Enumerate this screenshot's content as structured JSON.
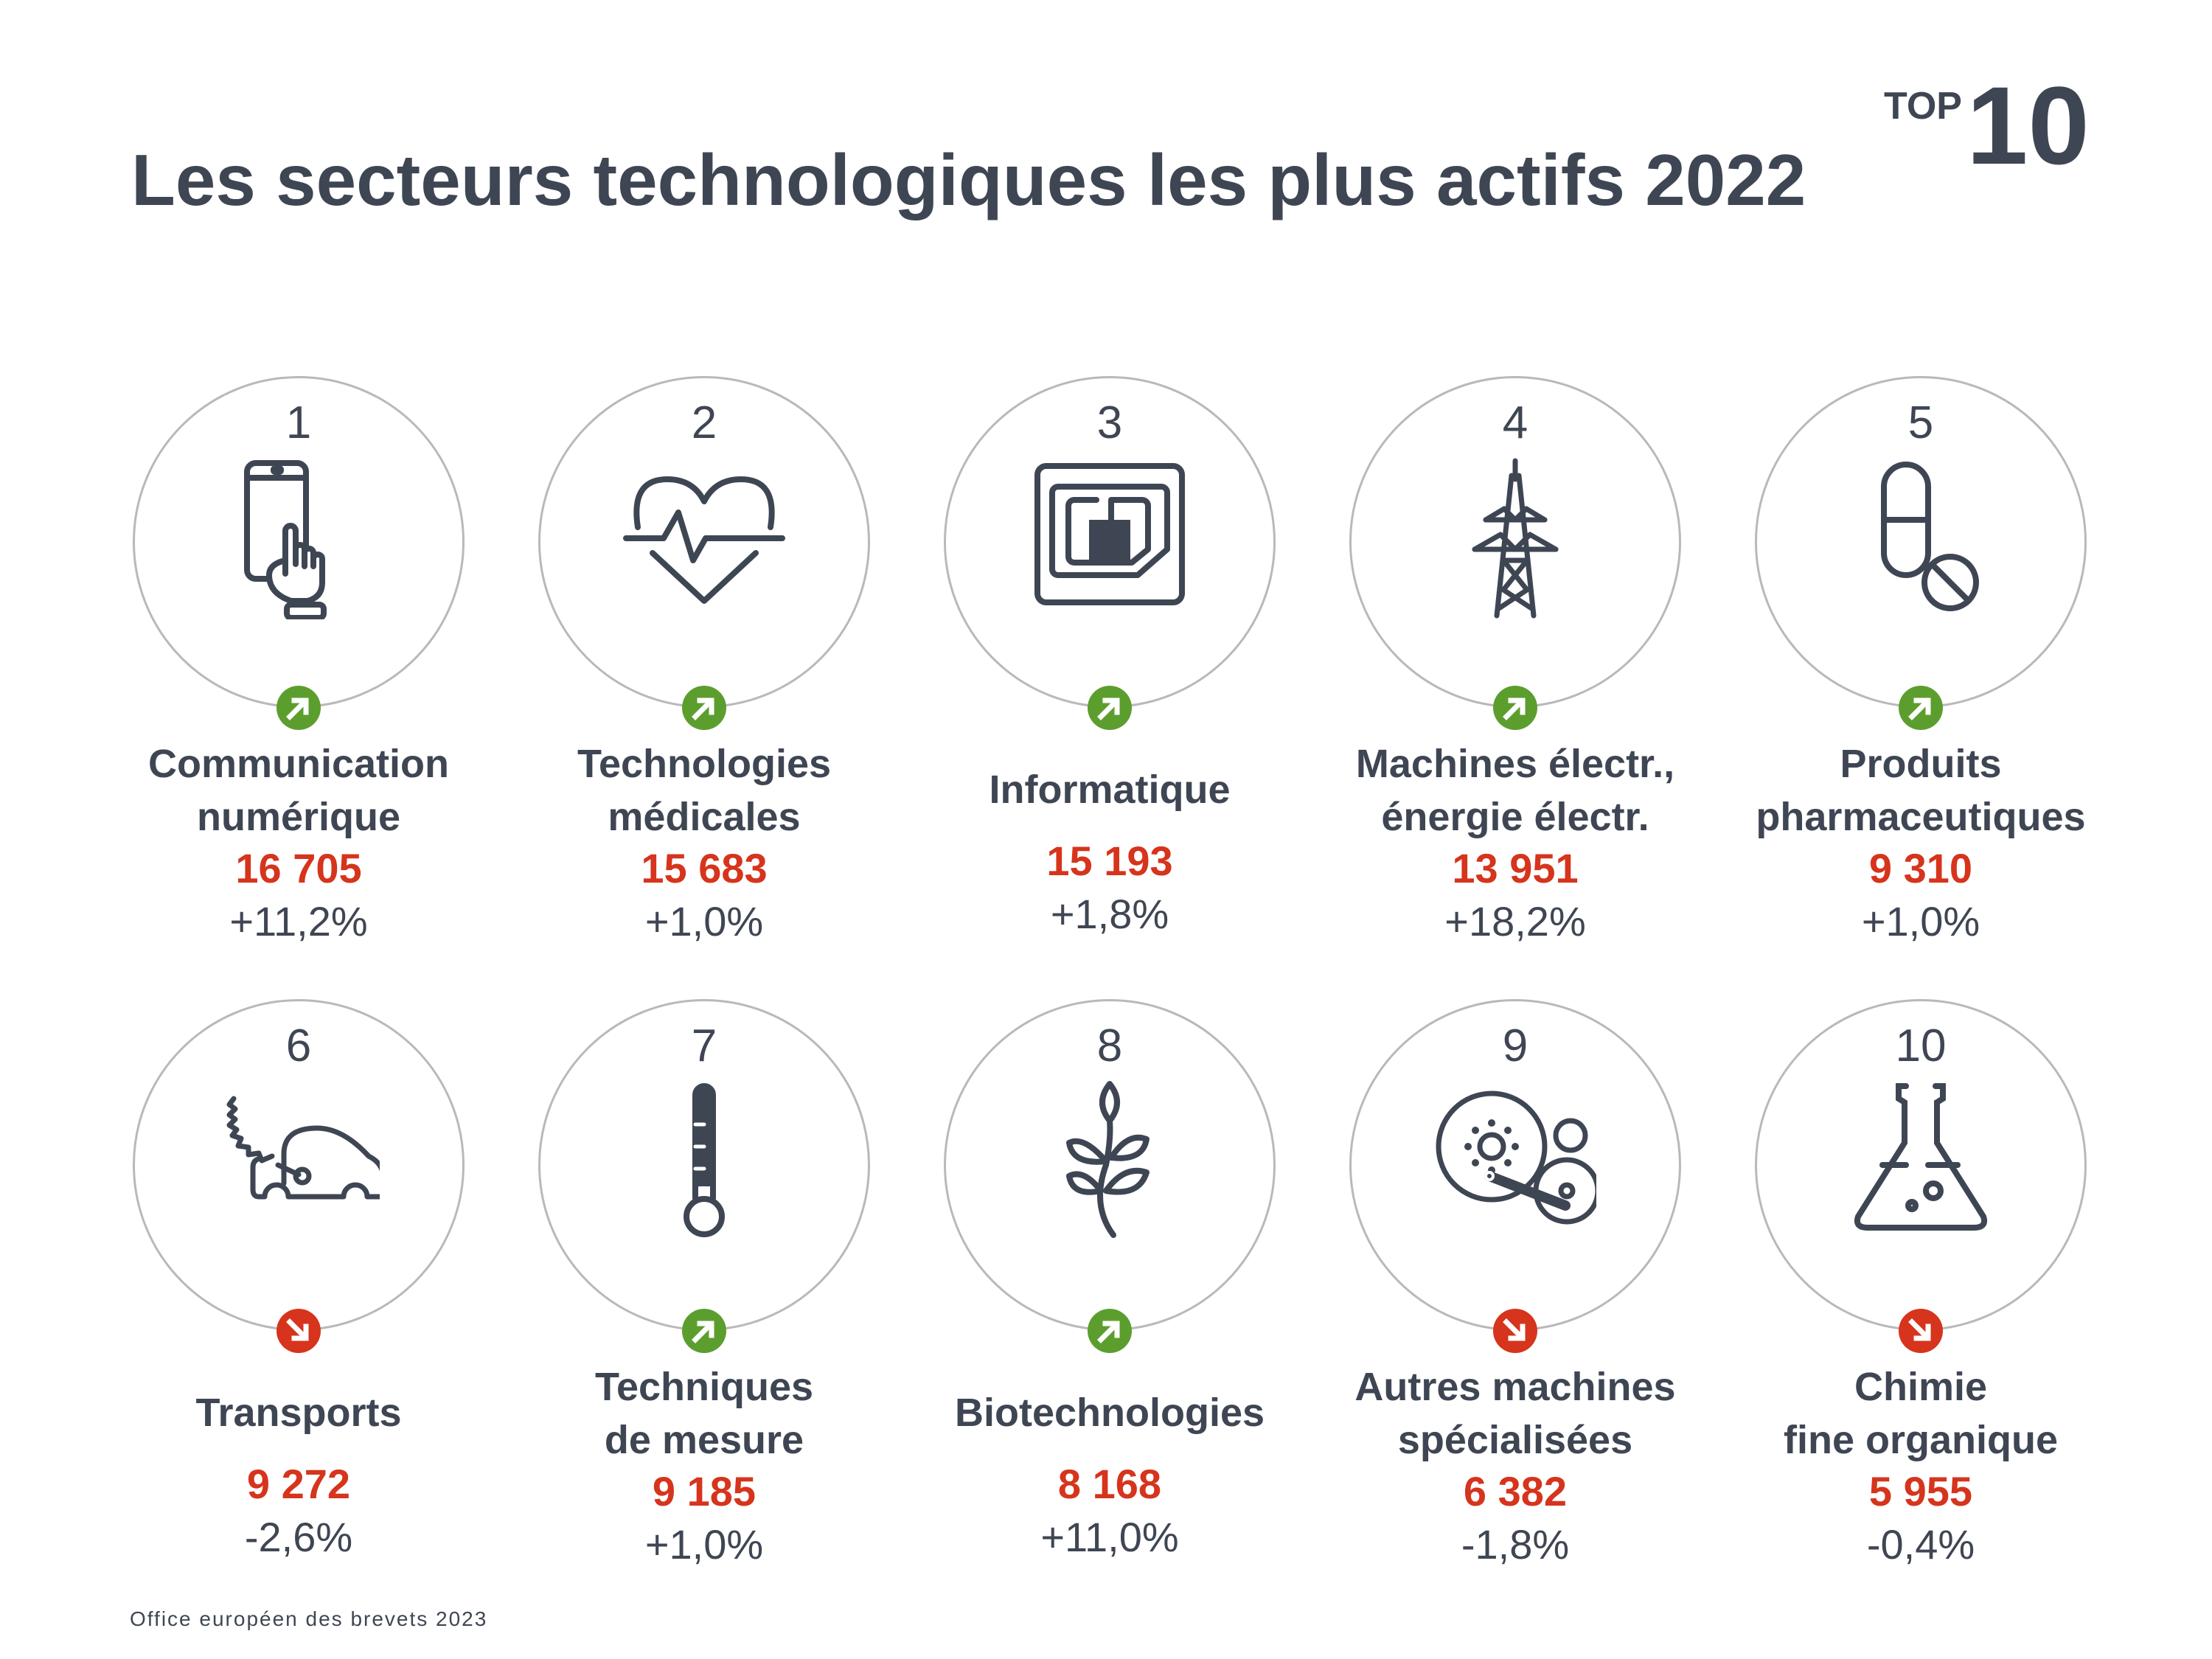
{
  "header": {
    "title": "Les secteurs technologiques les plus actifs 2022",
    "badge_top": "TOP",
    "badge_number": "10"
  },
  "colors": {
    "text": "#3f4653",
    "value": "#d6341c",
    "up": "#5c9e2e",
    "down": "#d6341c",
    "ring": "#b9b9b9"
  },
  "sectors": [
    {
      "rank": "1",
      "label_line1": "Communication",
      "label_line2": "numérique",
      "applications": "16 705",
      "change": "+11,2%",
      "trend": "up",
      "icon": "smartphone-touch-icon"
    },
    {
      "rank": "2",
      "label_line1": "Technologies",
      "label_line2": "médicales",
      "applications": "15 683",
      "change": "+1,0%",
      "trend": "up",
      "icon": "heart-pulse-icon"
    },
    {
      "rank": "3",
      "label_line1": "Informatique",
      "label_line2": "",
      "applications": "15 193",
      "change": "+1,8%",
      "trend": "up",
      "icon": "chip-icon"
    },
    {
      "rank": "4",
      "label_line1": "Machines électr.,",
      "label_line2": "énergie électr.",
      "applications": "13 951",
      "change": "+18,2%",
      "trend": "up",
      "icon": "power-pylon-icon"
    },
    {
      "rank": "5",
      "label_line1": "Produits",
      "label_line2": "pharmaceutiques",
      "applications": "9 310",
      "change": "+1,0%",
      "trend": "up",
      "icon": "pill-icon"
    },
    {
      "rank": "6",
      "label_line1": "Transports",
      "label_line2": "",
      "applications": "9 272",
      "change": "-2,6%",
      "trend": "down",
      "icon": "electric-car-icon"
    },
    {
      "rank": "7",
      "label_line1": "Techniques",
      "label_line2": "de mesure",
      "applications": "9 185",
      "change": "+1,0%",
      "trend": "up",
      "icon": "thermometer-icon"
    },
    {
      "rank": "8",
      "label_line1": "Biotechnologies",
      "label_line2": "",
      "applications": "8 168",
      "change": "+11,0%",
      "trend": "up",
      "icon": "plant-icon"
    },
    {
      "rank": "9",
      "label_line1": "Autres machines",
      "label_line2": "spécialisées",
      "applications": "6 382",
      "change": "-1,8%",
      "trend": "down",
      "icon": "machine-gears-icon"
    },
    {
      "rank": "10",
      "label_line1": "Chimie",
      "label_line2": "fine organique",
      "applications": "5 955",
      "change": "-0,4%",
      "trend": "down",
      "icon": "flask-icon"
    }
  ],
  "footer": {
    "source": "Office européen des brevets 2023"
  }
}
